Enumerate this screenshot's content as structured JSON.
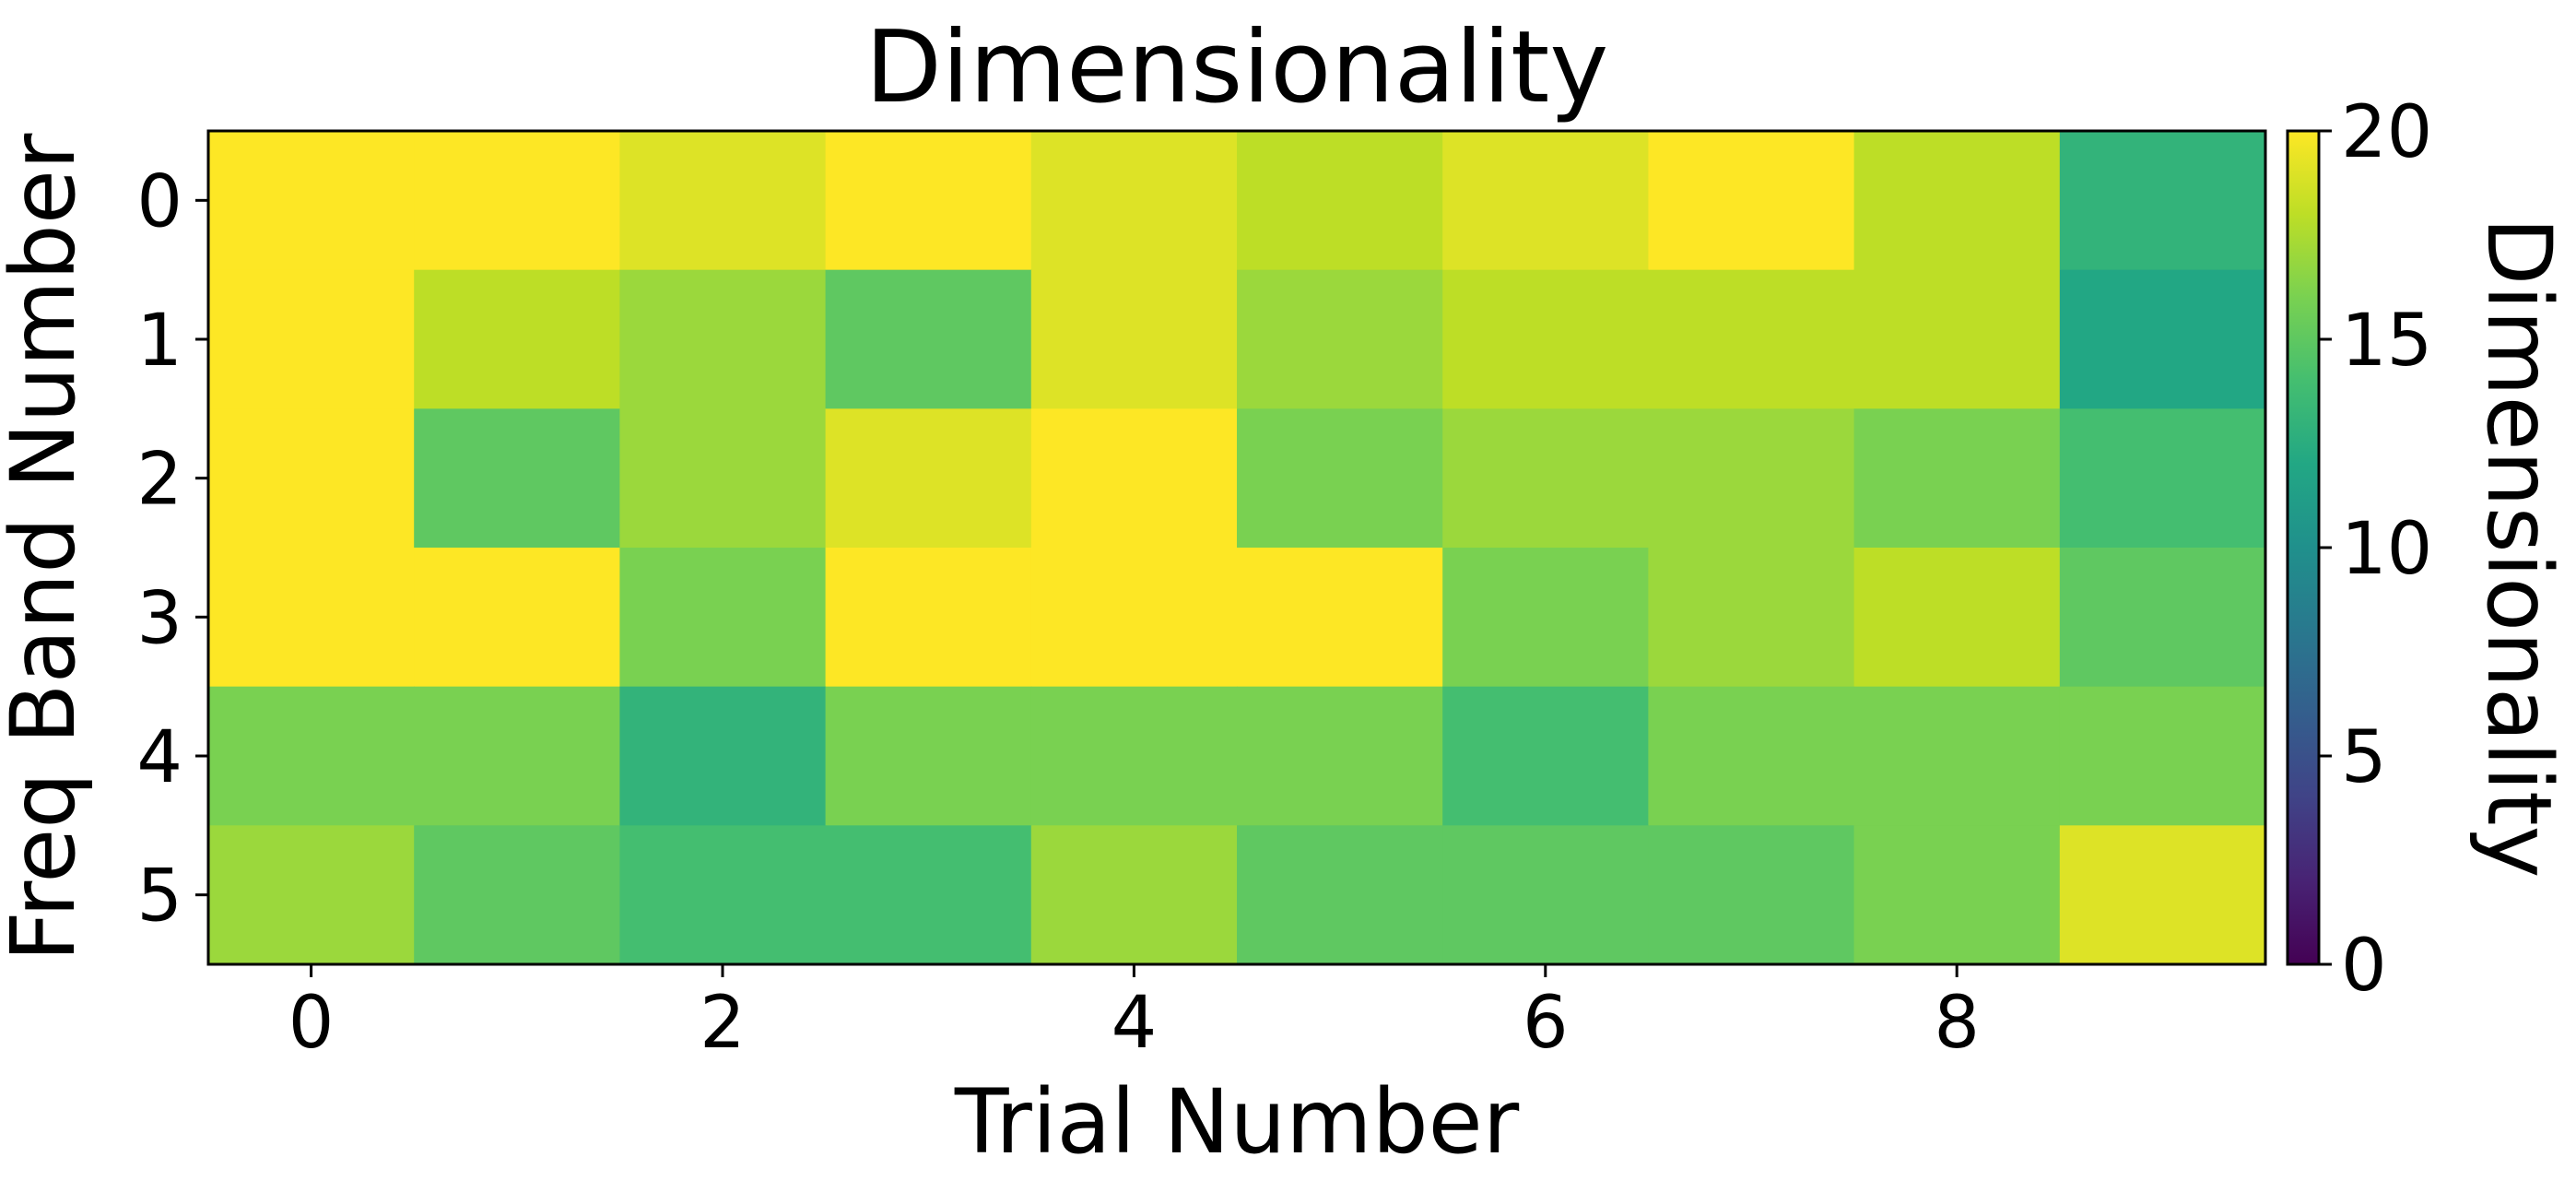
{
  "chart_data": {
    "type": "heatmap",
    "title": "Dimensionality",
    "xlabel": "Trial Number",
    "ylabel": "Freq Band Number",
    "x_categories": [
      0,
      1,
      2,
      3,
      4,
      5,
      6,
      7,
      8,
      9
    ],
    "y_categories": [
      0,
      1,
      2,
      3,
      4,
      5
    ],
    "x_ticks": [
      "0",
      "2",
      "4",
      "6",
      "8"
    ],
    "y_ticks": [
      "0",
      "1",
      "2",
      "3",
      "4",
      "5"
    ],
    "values": [
      [
        20,
        20,
        19,
        20,
        19,
        18,
        19,
        20,
        18,
        13
      ],
      [
        20,
        18,
        17,
        15,
        19,
        17,
        18,
        18,
        18,
        12
      ],
      [
        20,
        15,
        17,
        19,
        20,
        16,
        17,
        17,
        16,
        14
      ],
      [
        20,
        20,
        16,
        20,
        20,
        20,
        16,
        17,
        18,
        15
      ],
      [
        16,
        16,
        13,
        16,
        16,
        16,
        14,
        16,
        16,
        16
      ],
      [
        17,
        15,
        14,
        14,
        17,
        15,
        15,
        15,
        16,
        19
      ]
    ],
    "colorbar": {
      "label": "Dimensionality",
      "colormap": "viridis",
      "vmin": 0,
      "vmax": 20,
      "ticks": [
        "0",
        "5",
        "10",
        "15",
        "20"
      ]
    }
  }
}
